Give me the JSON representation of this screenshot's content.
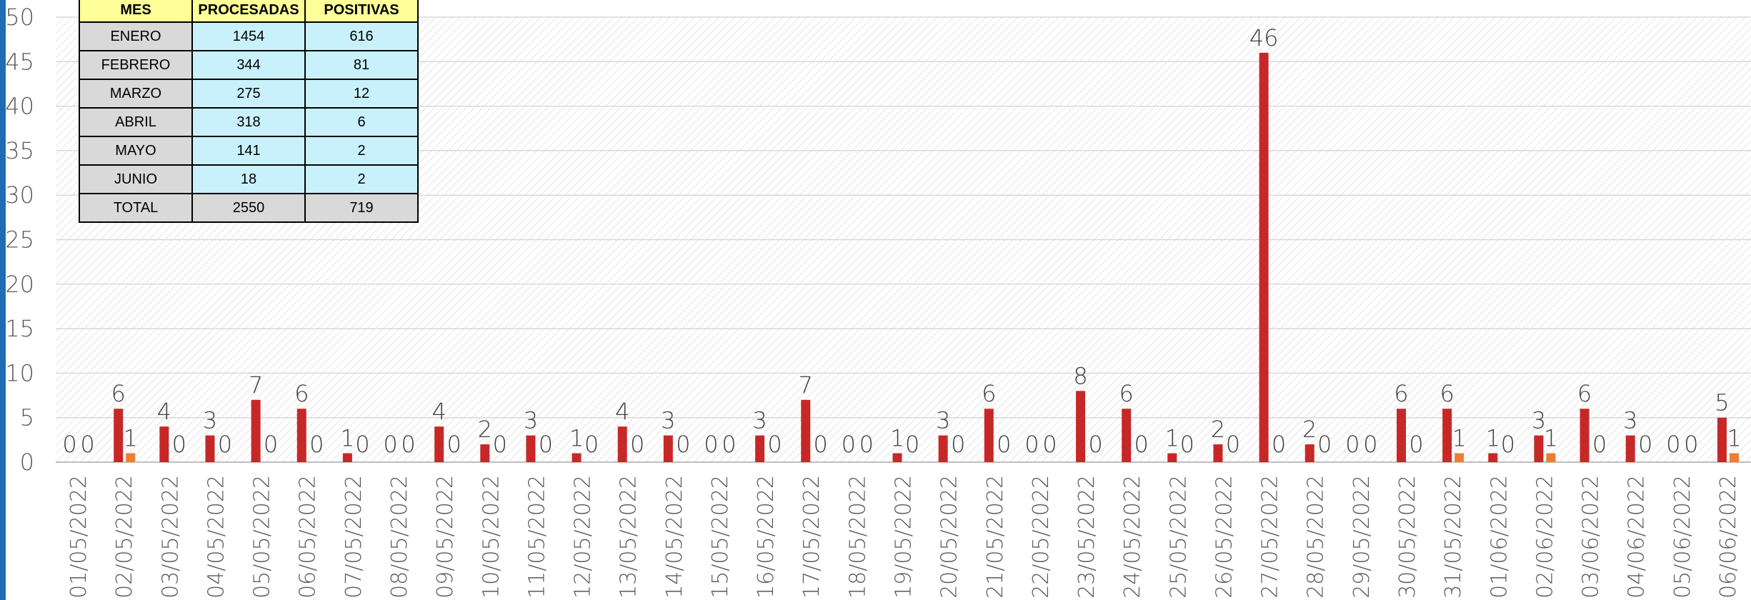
{
  "chart_data": {
    "type": "bar",
    "title": "",
    "xlabel": "",
    "ylabel": "",
    "ylim": [
      0,
      50
    ],
    "yticks": [
      0,
      5,
      10,
      15,
      20,
      25,
      30,
      35,
      40,
      45,
      50
    ],
    "grid": true,
    "legend": "none",
    "categories": [
      "01/05/2022",
      "02/05/2022",
      "03/05/2022",
      "04/05/2022",
      "05/05/2022",
      "06/05/2022",
      "07/05/2022",
      "08/05/2022",
      "09/05/2022",
      "10/05/2022",
      "11/05/2022",
      "12/05/2022",
      "13/05/2022",
      "14/05/2022",
      "15/05/2022",
      "16/05/2022",
      "17/05/2022",
      "18/05/2022",
      "19/05/2022",
      "20/05/2022",
      "21/05/2022",
      "22/05/2022",
      "23/05/2022",
      "24/05/2022",
      "25/05/2022",
      "26/05/2022",
      "27/05/2022",
      "28/05/2022",
      "29/05/2022",
      "30/05/2022",
      "31/05/2022",
      "01/06/2022",
      "02/06/2022",
      "03/06/2022",
      "04/06/2022",
      "05/06/2022",
      "06/06/2022"
    ],
    "series": [
      {
        "color": "#c62828",
        "values": [
          0,
          6,
          4,
          3,
          7,
          6,
          1,
          0,
          4,
          2,
          3,
          1,
          4,
          3,
          0,
          3,
          7,
          0,
          1,
          3,
          6,
          0,
          8,
          6,
          1,
          2,
          46,
          2,
          0,
          6,
          6,
          1,
          3,
          6,
          3,
          0,
          5
        ]
      },
      {
        "color": "#ed7d31",
        "values": [
          0,
          1,
          0,
          0,
          0,
          0,
          0,
          0,
          0,
          0,
          0,
          0,
          0,
          0,
          0,
          0,
          0,
          0,
          0,
          0,
          0,
          0,
          0,
          0,
          0,
          0,
          0,
          0,
          0,
          0,
          1,
          0,
          1,
          0,
          0,
          0,
          1
        ]
      }
    ]
  },
  "table": {
    "headers": [
      "MES",
      "PROCESADAS",
      "POSITIVAS"
    ],
    "rows": [
      [
        "ENERO",
        "1454",
        "616"
      ],
      [
        "FEBRERO",
        "344",
        "81"
      ],
      [
        "MARZO",
        "275",
        "12"
      ],
      [
        "ABRIL",
        "318",
        "6"
      ],
      [
        "MAYO",
        "141",
        "2"
      ],
      [
        "JUNIO",
        "18",
        "2"
      ]
    ],
    "total": [
      "TOTAL",
      "2550",
      "719"
    ]
  },
  "colors": {
    "grid": "#d9d9d9",
    "header_bg": "#ffff99",
    "value_bg": "#c9f1fb",
    "label_bg": "#d9d9d9",
    "left_edge": "#1f6db0"
  }
}
